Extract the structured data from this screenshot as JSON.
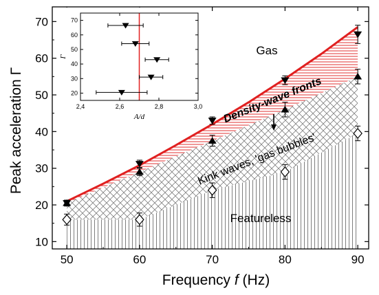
{
  "colors": {
    "boundary": "#e02020",
    "axis": "#000000",
    "hatch_dense": "#e03030",
    "hatch_cross": "#808080",
    "hatch_vertical": "#707070"
  },
  "chart_data": {
    "type": "scatter",
    "xlabel_prefix": "Frequency ",
    "xlabel_var": "f",
    "xlabel_suffix": " (Hz)",
    "ylabel": "Peak acceleration Γ",
    "xlim": [
      48,
      91.5
    ],
    "ylim": [
      8,
      74
    ],
    "xticks": [
      50,
      60,
      70,
      80,
      90
    ],
    "yticks": [
      10,
      20,
      30,
      40,
      50,
      60,
      70
    ],
    "grid": false,
    "series": [
      {
        "marker": "triangle-down",
        "x": [
          50,
          60,
          70,
          80,
          90
        ],
        "y": [
          20.5,
          31.2,
          43.0,
          54.0,
          66.5
        ],
        "yerr": [
          0.8,
          1.0,
          1.0,
          1.2,
          2.5
        ]
      },
      {
        "marker": "triangle-up",
        "x": [
          50,
          60,
          70,
          80,
          90
        ],
        "y": [
          20.5,
          29.0,
          37.5,
          46.0,
          55.0
        ],
        "yerr": [
          0.8,
          1.0,
          1.5,
          2.0,
          2.0
        ]
      },
      {
        "marker": "diamond-open",
        "x": [
          50,
          60,
          70,
          80,
          90
        ],
        "y": [
          16.0,
          16.0,
          24.0,
          29.0,
          39.5
        ],
        "yerr": [
          1.5,
          1.8,
          2.0,
          2.0,
          2.0
        ]
      }
    ],
    "boundary_curve": {
      "x": [
        50,
        55,
        60,
        65,
        70,
        75,
        80,
        85,
        90
      ],
      "y": [
        21.0,
        25.8,
        30.8,
        36.3,
        42.0,
        48.0,
        54.4,
        61.2,
        68.5
      ]
    },
    "regions": {
      "gas": "Gas",
      "density_wave": "Density-wave fronts",
      "kink": "Kink waves, 'gas bubbles'",
      "featureless": "Featureless"
    },
    "inset": {
      "xlabel": "A/d",
      "ylabel": "Γ",
      "xlim": [
        2.4,
        3.0
      ],
      "ylim": [
        15,
        75
      ],
      "xticks": [
        "2,4",
        "2,6",
        "2,8",
        "3,0"
      ],
      "xtick_values": [
        2.4,
        2.6,
        2.8,
        3.0
      ],
      "yticks": [
        20,
        30,
        40,
        50,
        60,
        70
      ],
      "vline": 2.7,
      "points": [
        {
          "x": 2.61,
          "y": 20.5,
          "xerr": 0.13
        },
        {
          "x": 2.76,
          "y": 31.0,
          "xerr": 0.06
        },
        {
          "x": 2.79,
          "y": 43.0,
          "xerr": 0.06
        },
        {
          "x": 2.68,
          "y": 54.0,
          "xerr": 0.07
        },
        {
          "x": 2.63,
          "y": 66.5,
          "xerr": 0.09
        }
      ]
    }
  }
}
